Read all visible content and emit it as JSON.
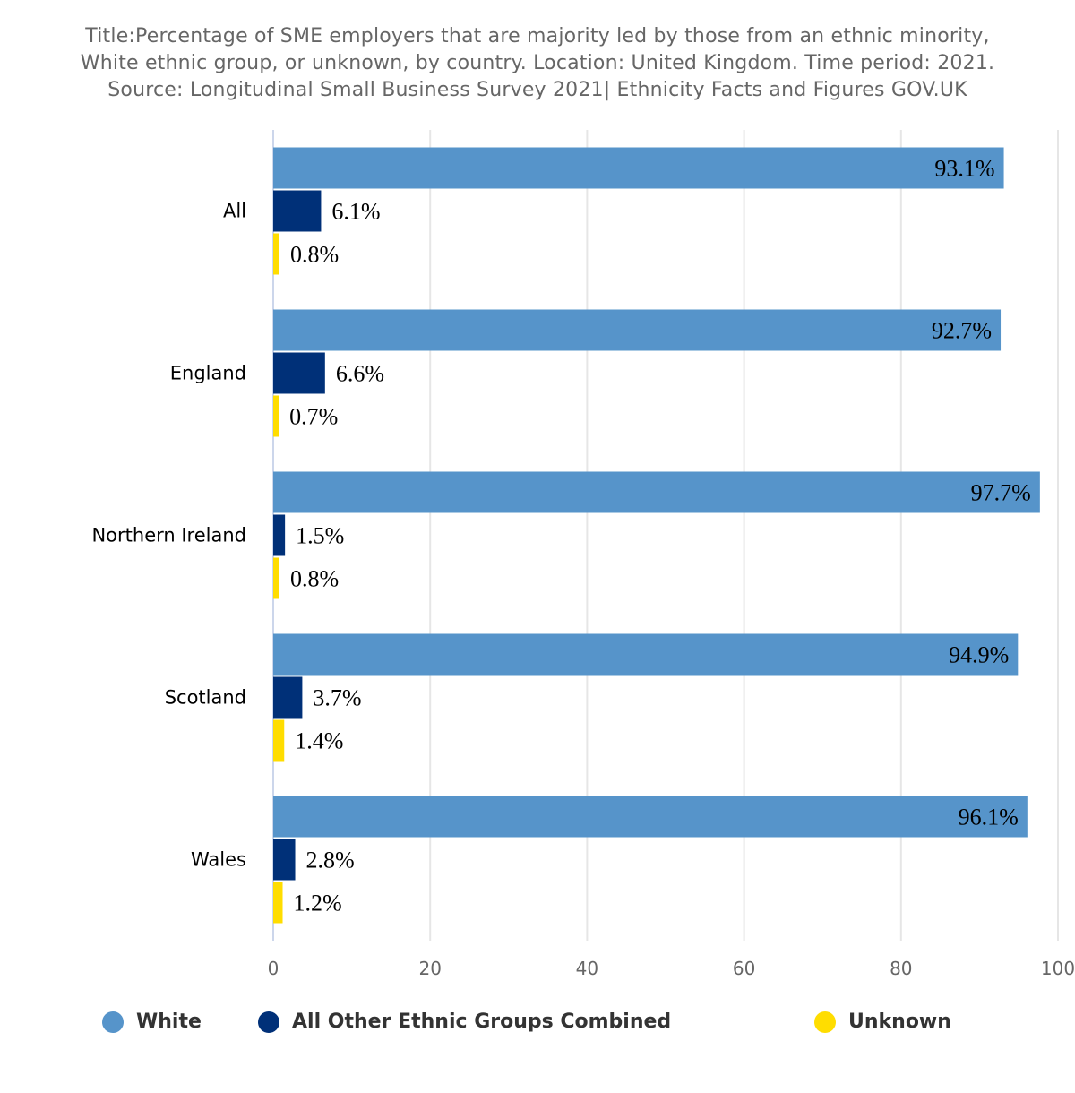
{
  "title_lines": [
    "Title:Percentage of SME employers that are majority led by those from an ethnic minority,",
    "White ethnic group, or unknown, by country. Location: United Kingdom. Time period: 2021.",
    "Source: Longitudinal Small Business Survey 2021| Ethnicity Facts and Figures GOV.UK"
  ],
  "chart_data": {
    "type": "bar",
    "orientation": "horizontal",
    "categories": [
      "All",
      "England",
      "Northern Ireland",
      "Scotland",
      "Wales"
    ],
    "series": [
      {
        "name": "White",
        "color": "#5694ca",
        "values": [
          93.1,
          92.7,
          97.7,
          94.9,
          96.1
        ],
        "labels": [
          "93.1%",
          "92.7%",
          "97.7%",
          "94.9%",
          "96.1%"
        ]
      },
      {
        "name": "All Other Ethnic Groups Combined",
        "color": "#003078",
        "values": [
          6.1,
          6.6,
          1.5,
          3.7,
          2.8
        ],
        "labels": [
          "6.1%",
          "6.6%",
          "1.5%",
          "3.7%",
          "2.8%"
        ]
      },
      {
        "name": "Unknown",
        "color": "#ffdd00",
        "values": [
          0.8,
          0.7,
          0.8,
          1.4,
          1.2
        ],
        "labels": [
          "0.8%",
          "0.7%",
          "0.8%",
          "1.4%",
          "1.2%"
        ]
      }
    ],
    "xlim": [
      0,
      100
    ],
    "ticks": [
      0,
      20,
      40,
      60,
      80,
      100
    ],
    "grid": true,
    "legend_position": "bottom"
  }
}
